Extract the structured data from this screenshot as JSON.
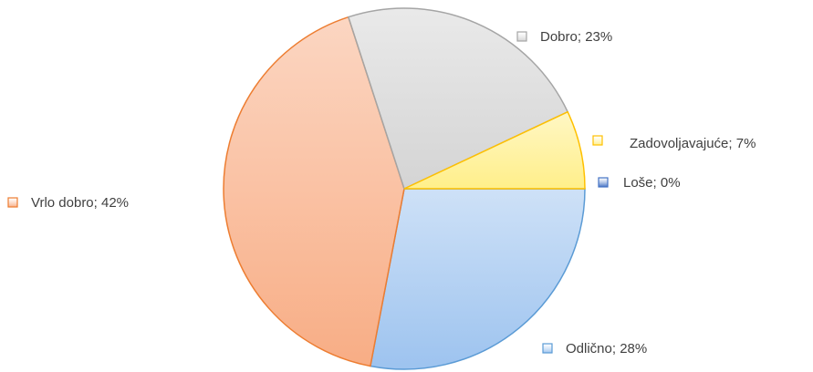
{
  "chart_data": {
    "type": "pie",
    "values": [
      0,
      28,
      42,
      23,
      7
    ],
    "value_labels": [
      "Loše; 0%",
      "Odlično; 28%",
      "Vrlo dobro; 42%",
      "Dobro; 23%",
      "Zadovoljavajuće; 7%"
    ],
    "colors": [
      "#4472c4",
      "#9dc3ef",
      "#f8ad85",
      "#d4d4d4",
      "#ffef8a"
    ],
    "stroke_colors": [
      "#4472c4",
      "#5b9bd5",
      "#ed7d31",
      "#a5a5a5",
      "#ffc000"
    ]
  }
}
